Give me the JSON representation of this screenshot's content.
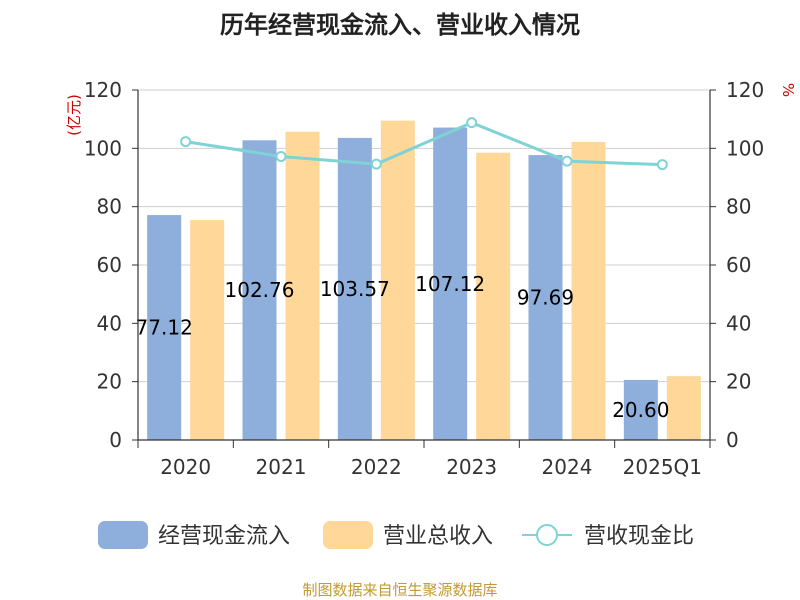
{
  "chart_data": {
    "type": "bar",
    "title": "历年经营现金流入、营业收入情况",
    "categories": [
      "2020",
      "2021",
      "2022",
      "2023",
      "2024",
      "2025Q1"
    ],
    "left_unit": "(亿元)",
    "right_unit": "%",
    "ylim": [
      0,
      120
    ],
    "y2lim": [
      0,
      120
    ],
    "yticks": [
      "0",
      "20",
      "40",
      "60",
      "80",
      "100",
      "120"
    ],
    "y2ticks": [
      "0",
      "20",
      "40",
      "60",
      "80",
      "100",
      "120"
    ],
    "grid": true,
    "legend_position": "bottom",
    "series": [
      {
        "name": "经营现金流入",
        "type": "bar",
        "axis": "left",
        "color": "#8eaedb",
        "values": [
          77.12,
          102.76,
          103.57,
          107.12,
          97.69,
          20.6
        ],
        "data_labels": [
          "77.12",
          "102.76",
          "103.57",
          "107.12",
          "97.69",
          "20.60"
        ]
      },
      {
        "name": "营业总收入",
        "type": "bar",
        "axis": "left",
        "color": "#ffd899",
        "values": [
          75.4,
          105.7,
          109.5,
          98.5,
          102.2,
          21.9
        ]
      },
      {
        "name": "营收现金比",
        "type": "line",
        "axis": "right",
        "color": "#7fd3d6",
        "values": [
          102.3,
          97.2,
          94.6,
          108.8,
          95.6,
          94.4
        ]
      }
    ],
    "source": "制图数据来自恒生聚源数据库"
  }
}
